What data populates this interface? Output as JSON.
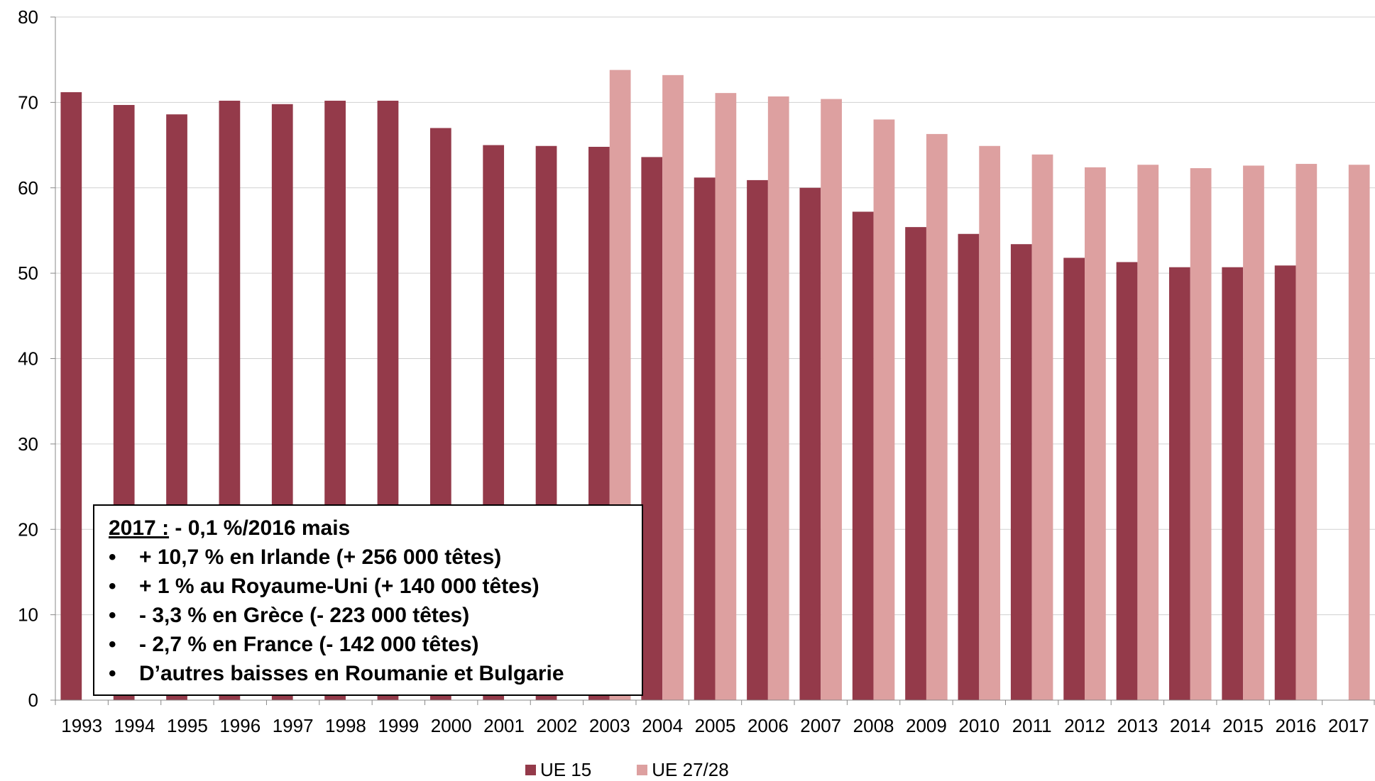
{
  "chart_data": {
    "type": "bar",
    "categories": [
      "1993",
      "1994",
      "1995",
      "1996",
      "1997",
      "1998",
      "1999",
      "2000",
      "2001",
      "2002",
      "2003",
      "2004",
      "2005",
      "2006",
      "2007",
      "2008",
      "2009",
      "2010",
      "2011",
      "2012",
      "2013",
      "2014",
      "2015",
      "2016",
      "2017"
    ],
    "series": [
      {
        "name": "UE 15",
        "color": "#943a4a",
        "values": [
          71.2,
          69.7,
          68.6,
          70.2,
          69.8,
          70.2,
          70.2,
          67.0,
          65.0,
          64.9,
          64.8,
          63.6,
          61.2,
          60.9,
          60.0,
          57.2,
          55.4,
          54.6,
          53.4,
          51.8,
          51.3,
          50.7,
          50.7,
          50.9,
          null
        ]
      },
      {
        "name": "UE 27/28",
        "color": "#dda0a0",
        "values": [
          null,
          null,
          null,
          null,
          null,
          null,
          null,
          null,
          null,
          null,
          73.8,
          73.2,
          71.1,
          70.7,
          70.4,
          68.0,
          66.3,
          64.9,
          63.9,
          62.4,
          62.7,
          62.3,
          62.6,
          62.8,
          62.7
        ]
      }
    ],
    "y_ticks": [
      "0",
      "10",
      "20",
      "30",
      "40",
      "50",
      "60",
      "70",
      "80"
    ],
    "ylim": [
      0,
      80
    ],
    "grid": true,
    "legend_position": "bottom"
  },
  "annotation": {
    "head_label": "2017 :",
    "head_text": " -  0,1 %/2016 mais",
    "bullet_symbol": "•",
    "items": [
      "+ 10,7 % en Irlande (+ 256 000 têtes)",
      "+ 1 % au Royaume-Uni (+ 140 000 têtes)",
      "- 3,3 % en Grèce (- 223 000 têtes)",
      "- 2,7 % en France (- 142 000 têtes)",
      "D’autres baisses en Roumanie et Bulgarie"
    ]
  }
}
